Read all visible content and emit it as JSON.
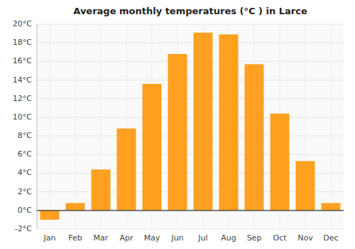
{
  "chart_data": {
    "type": "bar",
    "title": "Average monthly temperatures (°C ) in Larce",
    "categories": [
      "Jan",
      "Feb",
      "Mar",
      "Apr",
      "May",
      "Jun",
      "Jul",
      "Aug",
      "Sep",
      "Oct",
      "Nov",
      "Dec"
    ],
    "values": [
      -1.0,
      0.8,
      4.4,
      8.8,
      13.6,
      16.8,
      19.1,
      18.9,
      15.7,
      10.4,
      5.3,
      0.8
    ],
    "color": "#FFA020",
    "ylim": [
      -2,
      20
    ],
    "yticks": [
      {
        "value": -2,
        "label": "-2°C"
      },
      {
        "value": 0,
        "label": "0°C"
      },
      {
        "value": 2,
        "label": "2°C"
      },
      {
        "value": 4,
        "label": "4°C"
      },
      {
        "value": 6,
        "label": "6°C"
      },
      {
        "value": 8,
        "label": "8°C"
      },
      {
        "value": 10,
        "label": "10°C"
      },
      {
        "value": 12,
        "label": "12°C"
      },
      {
        "value": 14,
        "label": "14°C"
      },
      {
        "value": 16,
        "label": "16°C"
      },
      {
        "value": 18,
        "label": "18°C"
      },
      {
        "value": 20,
        "label": "20°C"
      }
    ],
    "grid": true
  }
}
